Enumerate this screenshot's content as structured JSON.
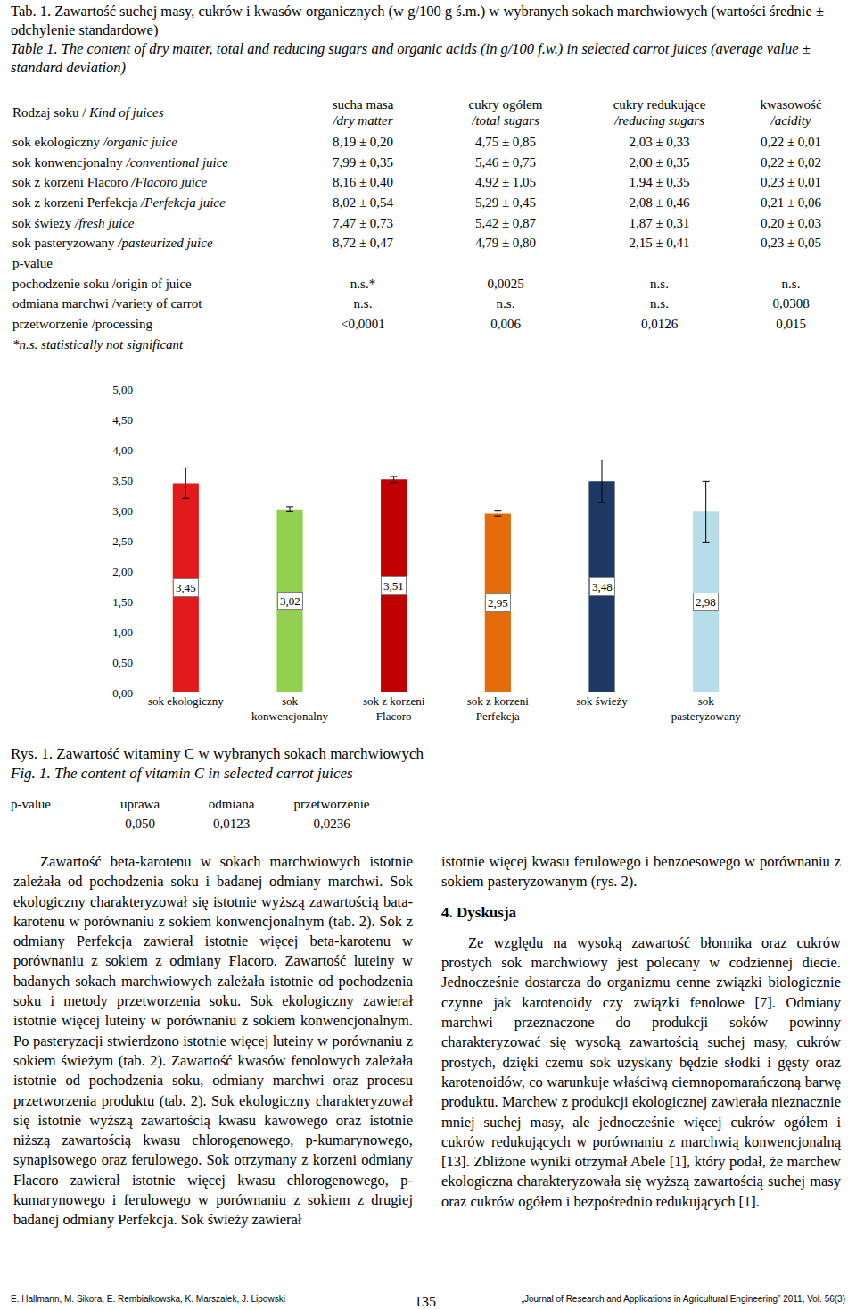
{
  "header": {
    "caption_pl": "Tab. 1. Zawartość suchej masy, cukrów i kwasów organicznych (w g/100 g ś.m.) w wybranych sokach marchwiowych (wartości średnie ± odchylenie standardowe)",
    "caption_en": "Table 1. The content of dry matter, total and reducing sugars and organic acids (in g/100 f.w.) in selected carrot juices (average value ± standard deviation)"
  },
  "table": {
    "columns": [
      {
        "pl": "Rodzaj soku /",
        "en": "Kind of juices"
      },
      {
        "pl": "sucha masa",
        "en": "/dry matter"
      },
      {
        "pl": "cukry ogółem",
        "en": "/total sugars"
      },
      {
        "pl": "cukry redukujące",
        "en": "/reducing sugars"
      },
      {
        "pl": "kwasowość",
        "en": "/acidity"
      }
    ],
    "rows": [
      {
        "pl": "sok ekologiczny",
        "en": "/organic juice",
        "cells": [
          "8,19 ± 0,20",
          "4,75 ± 0,85",
          "2,03 ± 0,33",
          "0,22 ± 0,01"
        ]
      },
      {
        "pl": "sok konwencjonalny",
        "en": "/conventional juice",
        "cells": [
          "7,99 ± 0,35",
          "5,46 ± 0,75",
          "2,00 ± 0,35",
          "0,22 ± 0,02"
        ]
      },
      {
        "pl": "sok z korzeni Flacoro",
        "en": "/Flacoro juice",
        "cells": [
          "8,16 ± 0,40",
          "4,92 ± 1,05",
          "1,94 ± 0,35",
          "0,23 ± 0,01"
        ]
      },
      {
        "pl": "sok z korzeni Perfekcja",
        "en": "/Perfekcja juice",
        "cells": [
          "8,02 ± 0,54",
          "5,29 ± 0,45",
          "2,08 ± 0,46",
          "0,21 ± 0,06"
        ]
      },
      {
        "pl": "sok świeży",
        "en": "/fresh juice",
        "cells": [
          "7,47 ± 0,73",
          "5,42 ± 0,87",
          "1,87 ± 0,31",
          "0,20 ± 0,03"
        ]
      },
      {
        "pl": "sok pasteryzowany",
        "en": "/pasteurized juice",
        "cells": [
          "8,72 ± 0,47",
          "4,79 ± 0,80",
          "2,15 ± 0,41",
          "0,23 ± 0,05"
        ]
      }
    ],
    "pvalue_label": "p-value",
    "pvalue_rows": [
      {
        "label": "pochodzenie soku /origin of juice",
        "cells": [
          "n.s.*",
          "0,0025",
          "n.s.",
          "n.s."
        ]
      },
      {
        "label": "odmiana marchwi /variety of carrot",
        "cells": [
          "n.s.",
          "n.s.",
          "n.s.",
          "0,0308"
        ]
      },
      {
        "label": "przetworzenie /processing",
        "cells": [
          "<0,0001",
          "0,006",
          "0,0126",
          "0,015"
        ]
      }
    ],
    "footnote": "*n.s. statistically not significant"
  },
  "chart_data": {
    "type": "bar",
    "categories": [
      "sok ekologiczny",
      "sok konwencjonalny",
      "sok z korzeni Flacoro",
      "sok z korzeni Perfekcja",
      "sok świeży",
      "sok pasteryzowany"
    ],
    "values": [
      3.45,
      3.02,
      3.51,
      2.95,
      3.48,
      2.98
    ],
    "value_labels": [
      "3,45",
      "3,02",
      "3,51",
      "2,95",
      "3,48",
      "2,98"
    ],
    "errors": [
      0.25,
      0.04,
      0.05,
      0.04,
      0.35,
      0.5
    ],
    "colors": [
      "#e31a1c",
      "#92d050",
      "#c00000",
      "#e46c0a",
      "#1f3864",
      "#b7dee8"
    ],
    "ylim": [
      0,
      5
    ],
    "yticks": [
      {
        "value": 0,
        "label": "0,00"
      },
      {
        "value": 0.5,
        "label": "0,50"
      },
      {
        "value": 1,
        "label": "1,00"
      },
      {
        "value": 1.5,
        "label": "1,50"
      },
      {
        "value": 2,
        "label": "2,00"
      },
      {
        "value": 2.5,
        "label": "2,50"
      },
      {
        "value": 3,
        "label": "3,00"
      },
      {
        "value": 3.5,
        "label": "3,50"
      },
      {
        "value": 4,
        "label": "4,00"
      },
      {
        "value": 4.5,
        "label": "4,50"
      },
      {
        "value": 5,
        "label": "5,00"
      }
    ],
    "grid": false,
    "data_labels": true
  },
  "figure": {
    "caption_pl": "Rys. 1. Zawartość witaminy C w wybranych sokach marchwiowych",
    "caption_en": "Fig. 1. The content of vitamin C in selected carrot juices"
  },
  "pvalues": {
    "label": "p-value",
    "names": [
      "uprawa",
      "odmiana",
      "przetworzenie"
    ],
    "values": [
      "0,050",
      "0,0123",
      "0,0236"
    ]
  },
  "columns": {
    "left": [
      "Zawartość beta-karotenu w sokach marchwiowych istotnie zależała od pochodzenia soku i badanej odmiany marchwi. Sok ekologiczny charakteryzował się istotnie wyższą zawartością bata-karotenu w porównaniu z sokiem konwencjonalnym (tab. 2). Sok z odmiany Perfekcja zawierał istotnie więcej beta-karotenu w porównaniu z sokiem z odmiany Flacoro. Zawartość luteiny w badanych sokach marchwiowych zależała istotnie od pochodzenia soku i metody przetworzenia soku. Sok ekologiczny zawierał istotnie więcej luteiny w porównaniu z sokiem konwencjonalnym. Po pasteryzacji stwierdzono istotnie więcej luteiny w porównaniu z sokiem świeżym (tab. 2). Zawartość kwasów fenolowych zależała istotnie od pochodzenia soku, odmiany marchwi oraz procesu przetworzenia produktu (tab. 2). Sok ekologiczny charakteryzował się istotnie wyższą zawartością kwasu kawowego oraz istotnie niższą zawartością kwasu chlorogenowego, p-kumarynowego, synapisowego oraz ferulowego. Sok otrzymany z korzeni odmiany Flacoro zawierał istotnie więcej kwasu chlorogenowego, p-kumarynowego i ferulowego w porównaniu z sokiem z drugiej badanej odmiany Perfekcja. Sok świeży zawierał"
    ],
    "right_continuation": "istotnie więcej kwasu ferulowego i benzoesowego w porównaniu z sokiem pasteryzowanym (rys. 2).",
    "heading": "4. Dyskusja",
    "right": [
      "Ze względu na wysoką zawartość błonnika oraz cukrów prostych sok marchwiowy jest polecany w codziennej diecie. Jednocześnie dostarcza do organizmu cenne związki biologicznie czynne jak karotenoidy czy związki fenolowe [7]. Odmiany marchwi przeznaczone do produkcji soków powinny charakteryzować się wysoką zawartością suchej masy, cukrów prostych, dzięki czemu sok uzyskany będzie słodki i gęsty oraz karotenoidów, co warunkuje właściwą ciemnopomarańczoną barwę produktu. Marchew z produkcji ekologicznej zawierała nieznacznie mniej suchej masy, ale jednocześnie więcej cukrów ogółem i cukrów redukujących w porównaniu z marchwią konwencjonalną [13]. Zbliżone wyniki otrzymał Abele [1], który podał, że marchew ekologiczna charakteryzowała się wyższą zawartością suchej masy oraz cukrów ogółem i bezpośrednio redukujących [1]."
    ]
  },
  "footer": {
    "authors": "E. Hallmann, M. Sikora, E. Rembiałkowska, K. Marszałek, J. Lipowski",
    "page": "135",
    "journal": "„Journal of Research and Applications in Agricultural Engineering” 2011, Vol. 56(3)"
  }
}
